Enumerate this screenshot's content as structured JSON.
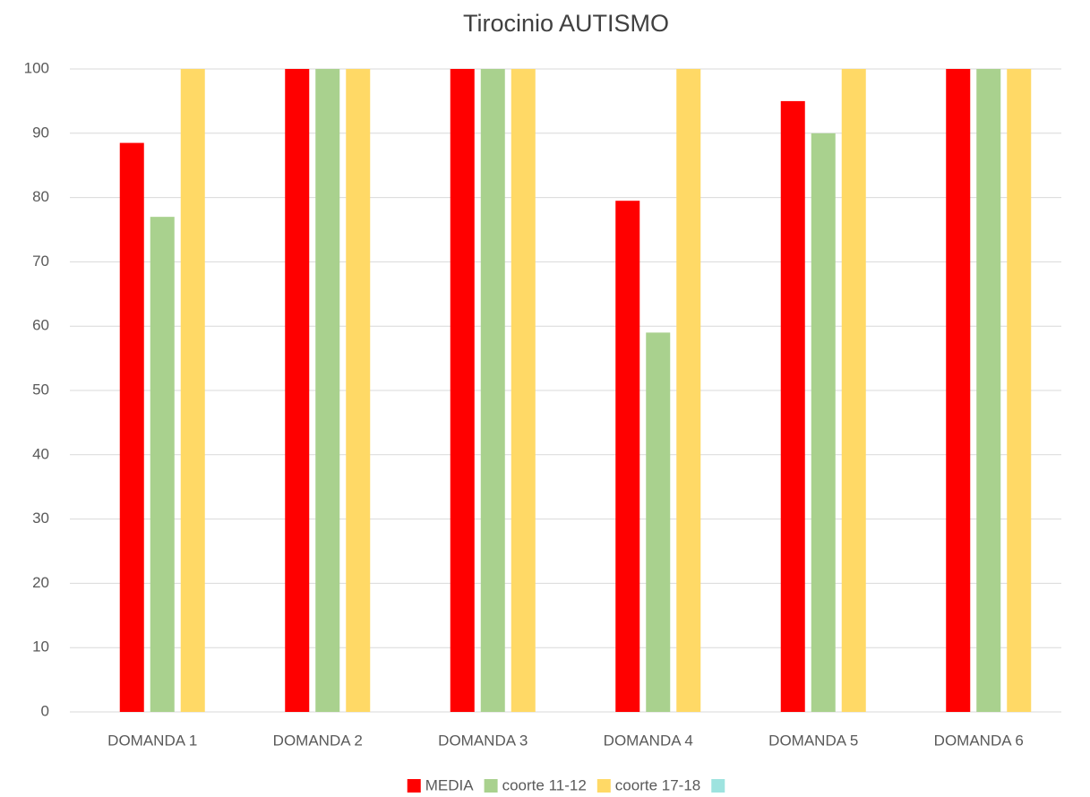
{
  "chart_data": {
    "type": "bar",
    "title": "Tirocinio AUTISMO",
    "categories": [
      "DOMANDA 1",
      "DOMANDA 2",
      "DOMANDA 3",
      "DOMANDA 4",
      "DOMANDA 5",
      "DOMANDA 6"
    ],
    "series": [
      {
        "name": "MEDIA",
        "color": "#ff0000",
        "values": [
          88.5,
          100,
          100,
          79.5,
          95,
          100
        ]
      },
      {
        "name": "coorte 11-12",
        "color": "#a9d18e",
        "values": [
          77,
          100,
          100,
          59,
          90,
          100
        ]
      },
      {
        "name": "coorte 17-18",
        "color": "#ffd966",
        "values": [
          100,
          100,
          100,
          100,
          100,
          100
        ]
      },
      {
        "color": "#9ee3df",
        "values": [
          null,
          null,
          null,
          null,
          null,
          null
        ]
      }
    ],
    "ylim": [
      0,
      100
    ],
    "yticks": [
      0,
      10,
      20,
      30,
      40,
      50,
      60,
      70,
      80,
      90,
      100
    ],
    "grid": true,
    "legend": "bottom"
  }
}
